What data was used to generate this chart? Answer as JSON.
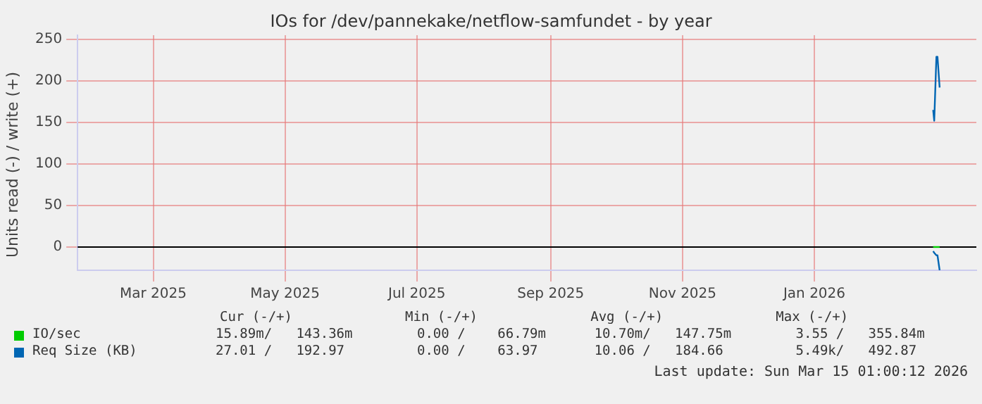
{
  "chart_data": {
    "type": "line",
    "title": "IOs for /dev/pannekake/netflow-samfundet - by year",
    "ylabel": "Units read (-) / write (+)",
    "xlim": [
      "2025-01-25",
      "2026-03-17"
    ],
    "xticks": [
      {
        "value": "2025-03-01",
        "label": "Mar 2025"
      },
      {
        "value": "2025-05-01",
        "label": "May 2025"
      },
      {
        "value": "2025-07-01",
        "label": "Jul 2025"
      },
      {
        "value": "2025-09-01",
        "label": "Sep 2025"
      },
      {
        "value": "2025-11-01",
        "label": "Nov 2025"
      },
      {
        "value": "2026-01-01",
        "label": "Jan 2026"
      }
    ],
    "ylim": [
      -28,
      255
    ],
    "yticks": [
      0,
      50,
      100,
      150,
      200,
      250
    ],
    "grid": true,
    "legend": "bottom",
    "marker": "none",
    "line_style": "solid",
    "x": [
      "2026-02-25",
      "2026-02-25T12:00",
      "2026-02-26",
      "2026-02-26T12:00",
      "2026-02-27",
      "2026-02-28"
    ],
    "series": [
      {
        "name": "IO/sec",
        "color": "#00cc00",
        "values": [
          0,
          0,
          0,
          0,
          0,
          0
        ]
      },
      {
        "name": "Req Size (KB)",
        "color": "#0066b3",
        "values": [
          165,
          152,
          152,
          229,
          229,
          192
        ]
      },
      {
        "color": "#0066b3",
        "values": [
          -5,
          -7,
          -7,
          -10,
          -10,
          -28
        ]
      }
    ],
    "ref_lines": [
      {
        "axis": "y",
        "value": 0,
        "color": "#000000"
      }
    ],
    "annotations": [
      "Cur (-/+)              Min (-/+)              Avg (-/+)              Max (-/+)",
      "15.89m/   143.36m        0.00 /    66.79m      10.70m/   147.75m        3.55 /   355.84m",
      "27.01 /   192.97         0.00 /    63.97       10.06 /   184.66         5.49k/   492.87",
      "Last update: Sun Mar 15 01:00:12 2026"
    ]
  }
}
